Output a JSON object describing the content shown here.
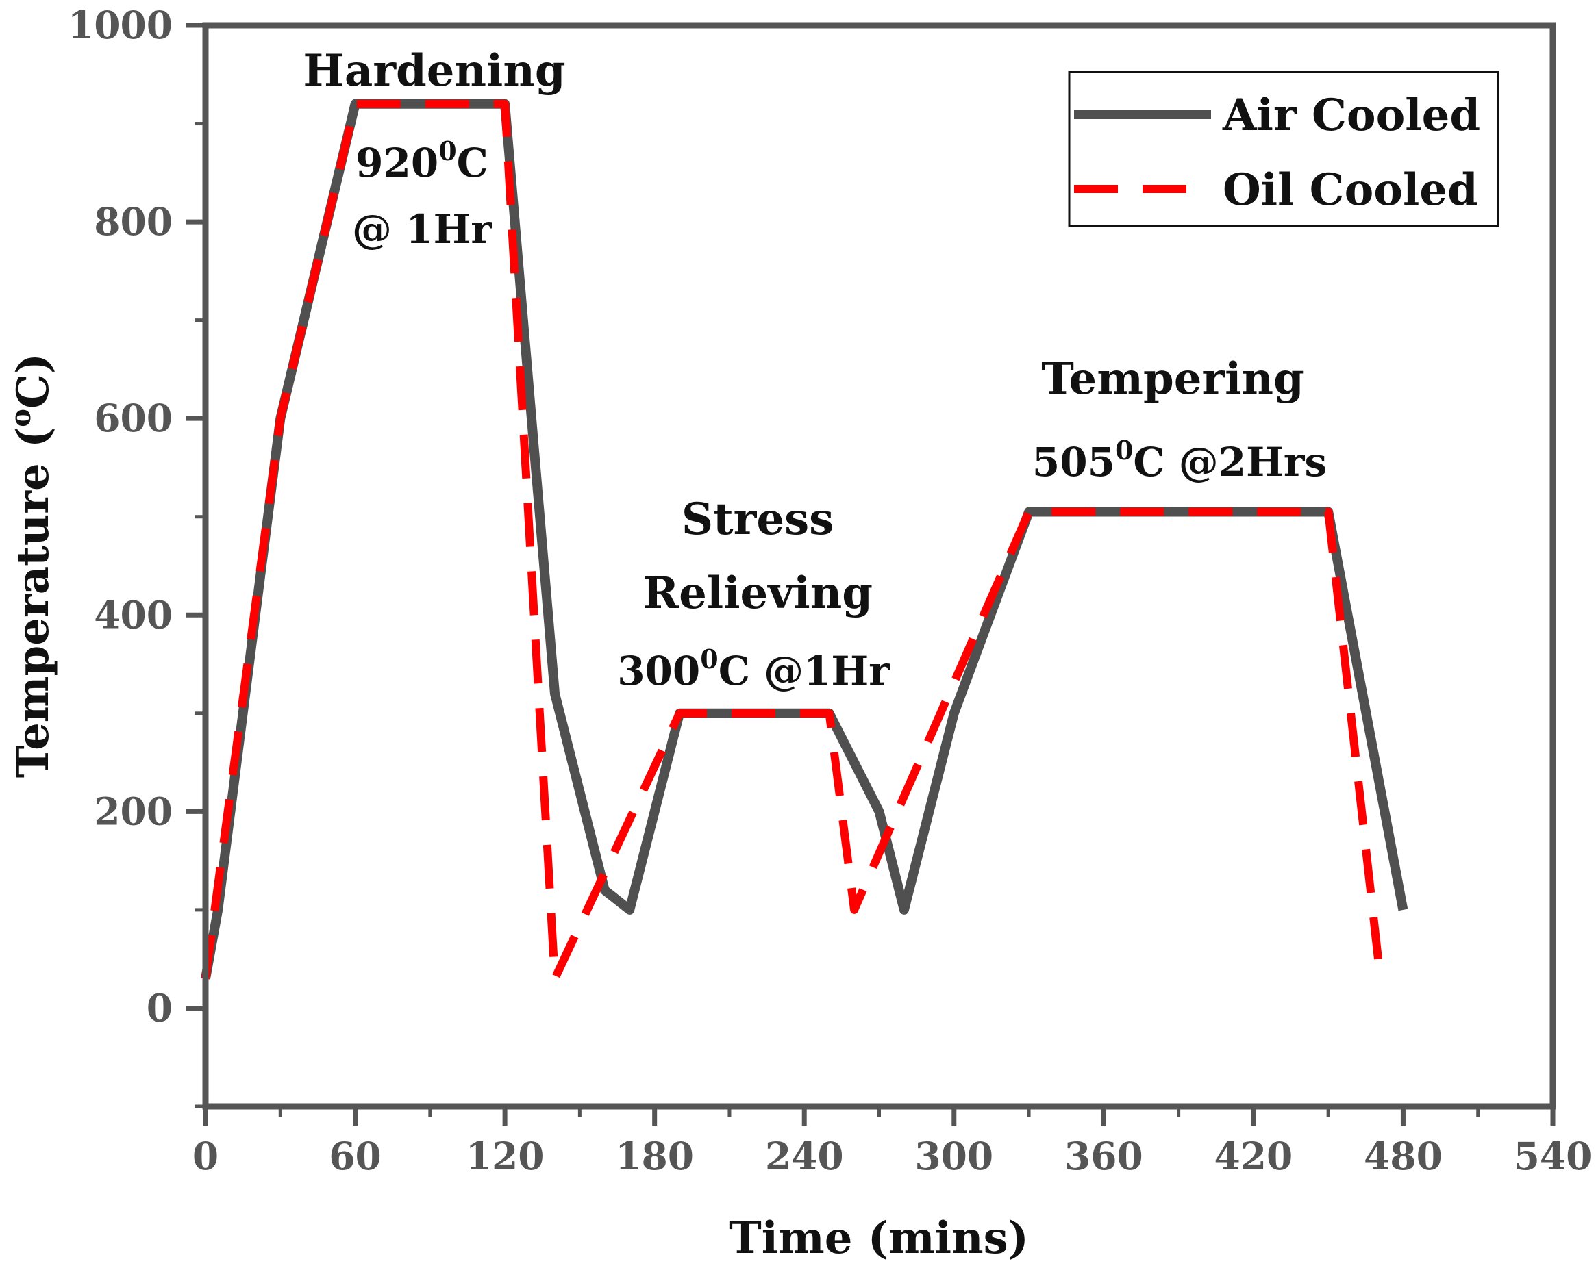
{
  "chart_data": {
    "type": "line",
    "title": "",
    "xlabel": "Time (mins)",
    "ylabel_main": "Temperature (",
    "ylabel_sup": "o",
    "ylabel_unit": "C)",
    "xlim": [
      0,
      540
    ],
    "ylim": [
      -100,
      1000
    ],
    "xticks": [
      0,
      60,
      120,
      180,
      240,
      300,
      360,
      420,
      480,
      540
    ],
    "yticks": [
      0,
      200,
      400,
      600,
      800,
      1000
    ],
    "legend_position": "top-right",
    "series": [
      {
        "name": "Air Cooled",
        "style": "solid",
        "color": "#505050",
        "x": [
          0,
          5,
          30,
          60,
          120,
          140,
          160,
          170,
          190,
          250,
          270,
          280,
          300,
          330,
          450,
          480
        ],
        "y": [
          30,
          100,
          600,
          920,
          920,
          320,
          120,
          100,
          300,
          300,
          200,
          100,
          300,
          505,
          505,
          100
        ]
      },
      {
        "name": "Oil Cooled",
        "style": "dashed",
        "color": "#ff0000",
        "x": [
          0,
          30,
          60,
          120,
          140,
          190,
          250,
          260,
          330,
          450,
          470
        ],
        "y": [
          30,
          600,
          920,
          920,
          30,
          300,
          300,
          100,
          505,
          505,
          50
        ]
      }
    ],
    "annotations": {
      "hardening_title": "Hardening",
      "hardening_temp": "920",
      "hardening_sup": "0",
      "hardening_unit": "C",
      "hardening_time": "@ 1Hr",
      "stress_line1": "Stress",
      "stress_line2": "Relieving",
      "stress_temp": "300",
      "stress_sup": "0",
      "stress_rest": "C @1Hr",
      "tempering_title": "Tempering",
      "tempering_temp": "505",
      "tempering_sup": "0",
      "tempering_rest": "C @2Hrs"
    }
  }
}
